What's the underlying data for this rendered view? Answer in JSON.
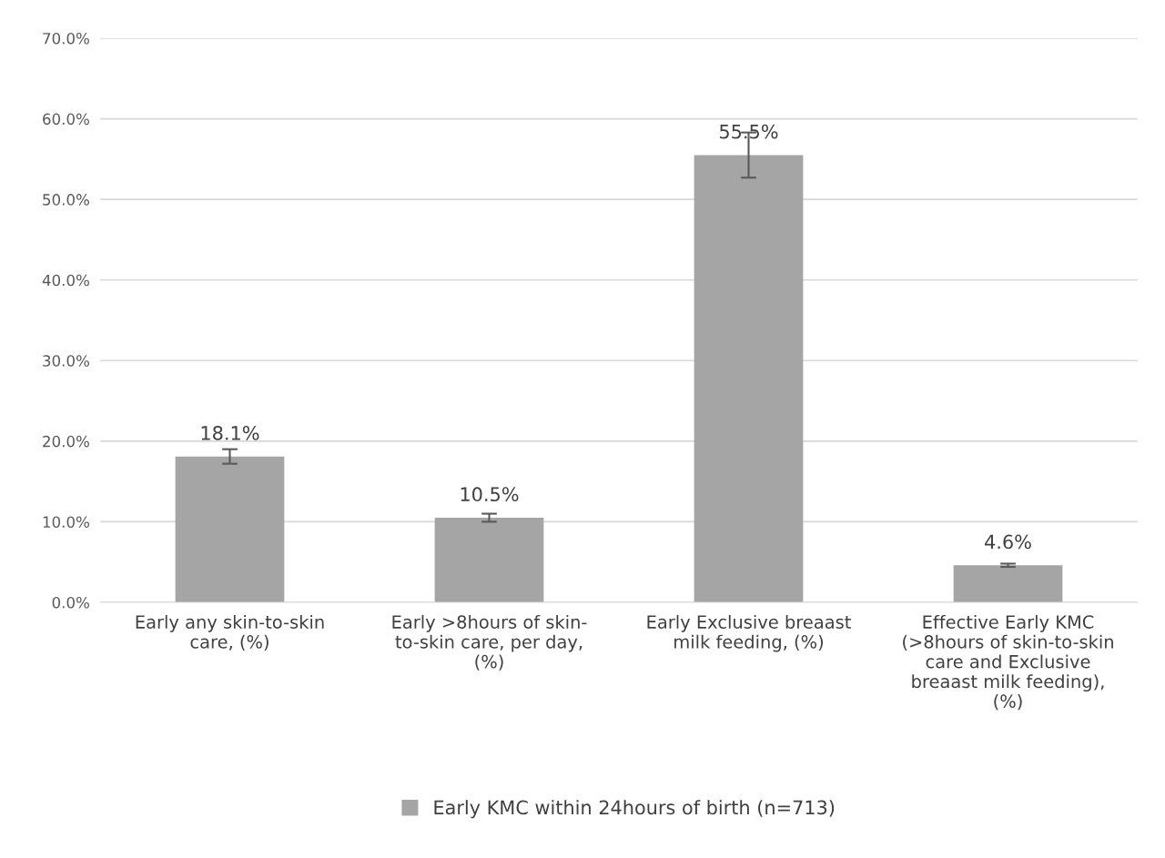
{
  "chart_data": {
    "type": "bar",
    "categories": [
      "Early any skin-to-skin\ncare, (%)",
      "Early >8hours of skin-\nto-skin care, per day,\n(%)",
      "Early Exclusive breaast\nmilk feeding, (%)",
      "Effective Early KMC\n(>8hours of skin-to-skin\ncare and Exclusive\nbreaast milk feeding),\n(%)"
    ],
    "series": [
      {
        "name": "Early KMC within 24hours of birth (n=713)",
        "color": "#a5a5a5",
        "values": [
          18.1,
          10.5,
          55.5,
          4.6
        ],
        "errors": [
          0.9,
          0.5,
          2.8,
          0.2
        ],
        "value_labels": [
          "18.1%",
          "10.5%",
          "55.5%",
          "4.6%"
        ]
      }
    ],
    "ylim": [
      0,
      70
    ],
    "yticks": [
      {
        "value": 0,
        "label": "0.0%"
      },
      {
        "value": 10,
        "label": "10.0%"
      },
      {
        "value": 20,
        "label": "20.0%"
      },
      {
        "value": 30,
        "label": "30.0%"
      },
      {
        "value": 40,
        "label": "40.0%"
      },
      {
        "value": 50,
        "label": "50.0%"
      },
      {
        "value": 60,
        "label": "60.0%"
      },
      {
        "value": 70,
        "label": "70.0%"
      }
    ],
    "grid": "y",
    "legend": "bottom"
  }
}
